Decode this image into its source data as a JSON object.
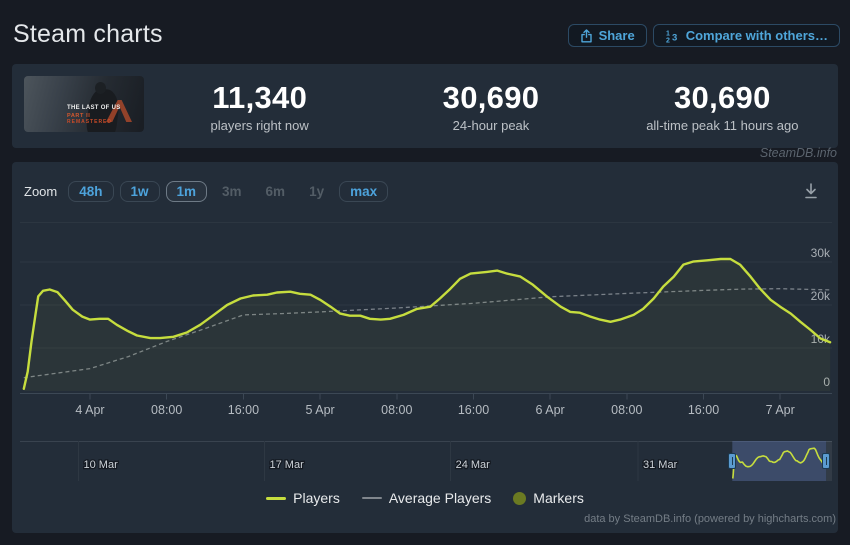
{
  "page": {
    "title": "Steam charts",
    "watermark": "SteamDB.info",
    "credits": "data by SteamDB.info (powered by highcharts.com)"
  },
  "header": {
    "share": "Share",
    "compare": "Compare with others…"
  },
  "game": {
    "name_line1": "THE LAST OF US",
    "name_line2": "PART II",
    "name_line3": "REMASTERED"
  },
  "stats": [
    {
      "value": "11,340",
      "label": "players right now"
    },
    {
      "value": "30,690",
      "label": "24-hour peak"
    },
    {
      "value": "30,690",
      "label": "all-time peak 11 hours ago"
    }
  ],
  "toolbar": {
    "zoom_label": "Zoom",
    "buttons": [
      {
        "label": "48h",
        "state": "normal"
      },
      {
        "label": "1w",
        "state": "normal"
      },
      {
        "label": "1m",
        "state": "selected"
      },
      {
        "label": "3m",
        "state": "disabled"
      },
      {
        "label": "6m",
        "state": "disabled"
      },
      {
        "label": "1y",
        "state": "disabled"
      },
      {
        "label": "max",
        "state": "normal"
      }
    ]
  },
  "chart_data": {
    "type": "line",
    "title": "",
    "x_unit": "hours relative to 4 Apr 00:00",
    "t_min": -7.3,
    "t_max": 77.4,
    "ylim": [
      0,
      39300
    ],
    "grid": true,
    "legend_position": "bottom",
    "yticks": [
      {
        "value": 0,
        "label": "0"
      },
      {
        "value": 10000,
        "label": "10k"
      },
      {
        "value": 20000,
        "label": "20k"
      },
      {
        "value": 30000,
        "label": "30k"
      }
    ],
    "xticks": [
      {
        "t": 0,
        "label": "4 Apr"
      },
      {
        "t": 8,
        "label": "08:00"
      },
      {
        "t": 16,
        "label": "16:00"
      },
      {
        "t": 24,
        "label": "5 Apr"
      },
      {
        "t": 32,
        "label": "08:00"
      },
      {
        "t": 40,
        "label": "16:00"
      },
      {
        "t": 48,
        "label": "6 Apr"
      },
      {
        "t": 56,
        "label": "08:00"
      },
      {
        "t": 64,
        "label": "16:00"
      },
      {
        "t": 72,
        "label": "7 Apr"
      }
    ],
    "series": [
      {
        "name": "Players",
        "color": "#c6dd3e",
        "fill": "rgba(198,221,62,0.05)",
        "x": [
          -6.9,
          -6.5,
          -6.1,
          -5.7,
          -5.4,
          -4.9,
          -4.2,
          -3.4,
          -2.6,
          -1.8,
          -0.8,
          0,
          1,
          1.9,
          2.8,
          3.9,
          4.9,
          6.3,
          7.3,
          8.7,
          10.1,
          11.5,
          12.8,
          14.3,
          15.7,
          17,
          18.5,
          19.5,
          20.9,
          21.9,
          23,
          24,
          25.1,
          26.1,
          27.1,
          28.2,
          29.2,
          30.3,
          31.3,
          32.7,
          34.1,
          35.5,
          36.5,
          37.6,
          38.6,
          39.7,
          41.4,
          42.5,
          43.5,
          44.9,
          46.2,
          47.7,
          49.1,
          50.1,
          51.1,
          52.2,
          53.2,
          54.3,
          55.3,
          56.7,
          57.7,
          58.8,
          59.8,
          60.9,
          61.9,
          62.9,
          64.4,
          65.8,
          66.8,
          67.8,
          68.9,
          69.9,
          71,
          72,
          73.1,
          74.1,
          75.1,
          76.2,
          77.2
        ],
        "values": [
          500,
          4500,
          11500,
          17500,
          22000,
          23300,
          23600,
          23000,
          21000,
          18900,
          17300,
          16600,
          16800,
          16800,
          15400,
          14000,
          12900,
          12300,
          12300,
          12600,
          13600,
          15400,
          17500,
          20000,
          21500,
          22200,
          22400,
          22900,
          23100,
          22600,
          22400,
          21200,
          19600,
          18000,
          17500,
          17500,
          16800,
          16600,
          16800,
          17700,
          19100,
          19600,
          21500,
          23800,
          26100,
          27300,
          27700,
          28000,
          27300,
          26600,
          24700,
          21900,
          19600,
          18400,
          18200,
          17300,
          16600,
          16100,
          16600,
          17700,
          19100,
          21500,
          24300,
          26600,
          29400,
          30100,
          30400,
          30690,
          30690,
          29400,
          26600,
          23800,
          21200,
          19600,
          18000,
          16100,
          14300,
          12200,
          11340
        ]
      },
      {
        "name": "Average Players",
        "color": "#8a9198",
        "dashed": true,
        "x": [
          -6.9,
          0,
          4,
          8,
          12,
          16,
          20,
          24,
          32,
          40,
          48,
          56,
          64,
          68,
          72,
          77.2
        ],
        "values": [
          3100,
          5200,
          8000,
          11500,
          14500,
          17700,
          18000,
          18400,
          19300,
          20400,
          21900,
          22700,
          23400,
          23700,
          23800,
          23500
        ]
      }
    ],
    "legend": [
      {
        "label": "Players",
        "swatch": "line",
        "color": "#c6dd3e"
      },
      {
        "label": "Average Players",
        "swatch": "line",
        "color": "#80868d"
      },
      {
        "label": "Markers",
        "swatch": "circle",
        "color": "#6b7a22"
      }
    ]
  },
  "navigator": {
    "range_days": 30.55,
    "ylim": [
      0,
      36000
    ],
    "ticks": [
      {
        "day": 2.2,
        "label": "10 Mar"
      },
      {
        "day": 9.2,
        "label": "17 Mar"
      },
      {
        "day": 16.2,
        "label": "24 Mar"
      },
      {
        "day": 23.25,
        "label": "31 Mar"
      }
    ],
    "selection": {
      "from_day": 26.8,
      "to_day": 30.33
    }
  }
}
